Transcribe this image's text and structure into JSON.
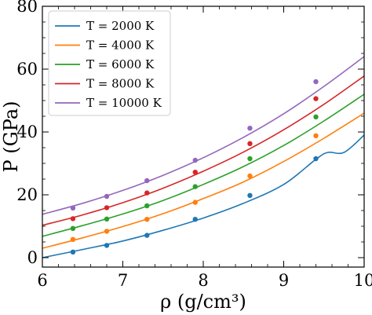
{
  "chart_data": {
    "type": "line",
    "xlabel": "ρ (g/cm³)",
    "ylabel": "P (GPa)",
    "xlim": [
      6,
      10
    ],
    "ylim": [
      -3,
      80
    ],
    "x_ticks": [
      6,
      7,
      8,
      9,
      10
    ],
    "y_ticks": [
      0,
      20,
      40,
      60,
      80
    ],
    "x_tick_labels": [
      "6",
      "7",
      "8",
      "9",
      "10"
    ],
    "y_tick_labels": [
      "0",
      "20",
      "40",
      "60",
      "80"
    ],
    "grid": false,
    "legend_position": "top-left",
    "series": [
      {
        "name": "T = 2000 K",
        "color": "#1f77b4",
        "line_x": [
          6.0,
          6.5,
          7.0,
          7.5,
          8.0,
          8.5,
          9.0,
          9.4,
          9.55,
          9.75,
          10.0
        ],
        "line_y": [
          0.0,
          2.6,
          5.3,
          8.7,
          12.6,
          17.3,
          23.3,
          31.3,
          33.5,
          33.5,
          39.0
        ],
        "points_x": [
          6.38,
          6.8,
          7.3,
          7.9,
          8.58,
          9.4
        ],
        "points_y": [
          1.8,
          3.9,
          7.1,
          12.2,
          19.8,
          31.5
        ]
      },
      {
        "name": "T = 4000 K",
        "color": "#ff7f0e",
        "line_x": [
          6.0,
          6.5,
          7.0,
          7.5,
          8.0,
          8.5,
          9.0,
          9.5,
          10.0
        ],
        "line_y": [
          3.0,
          6.3,
          9.9,
          14.0,
          18.8,
          24.1,
          30.6,
          38.0,
          46.0
        ],
        "points_x": [
          6.38,
          6.8,
          7.3,
          7.9,
          8.58,
          9.4
        ],
        "points_y": [
          5.8,
          8.4,
          12.2,
          17.6,
          26.0,
          38.8
        ]
      },
      {
        "name": "T = 6000 K",
        "color": "#2ca02c",
        "line_x": [
          6.0,
          6.5,
          7.0,
          7.5,
          8.0,
          8.5,
          9.0,
          9.5,
          10.0
        ],
        "line_y": [
          6.8,
          10.2,
          13.9,
          18.2,
          23.3,
          29.0,
          35.7,
          43.5,
          52.0
        ],
        "points_x": [
          6.38,
          6.8,
          7.3,
          7.9,
          8.58,
          9.4
        ],
        "points_y": [
          9.3,
          12.3,
          16.5,
          22.6,
          31.5,
          44.8
        ]
      },
      {
        "name": "T = 8000 K",
        "color": "#d62728",
        "line_x": [
          6.0,
          6.5,
          7.0,
          7.5,
          8.0,
          8.5,
          9.0,
          9.5,
          10.0
        ],
        "line_y": [
          10.3,
          13.6,
          17.5,
          22.1,
          27.5,
          33.6,
          40.7,
          48.8,
          57.8
        ],
        "points_x": [
          6.38,
          6.8,
          7.3,
          7.9,
          8.58,
          9.4
        ],
        "points_y": [
          12.4,
          15.9,
          20.6,
          27.2,
          36.3,
          50.6
        ]
      },
      {
        "name": "T = 10000 K",
        "color": "#9467bd",
        "line_x": [
          6.0,
          6.5,
          7.0,
          7.5,
          8.0,
          8.5,
          9.0,
          9.5,
          10.0
        ],
        "line_y": [
          13.8,
          17.3,
          21.4,
          26.2,
          31.8,
          38.3,
          45.8,
          54.5,
          64.0
        ],
        "points_x": [
          6.38,
          6.8,
          7.3,
          7.9,
          8.58,
          9.4
        ],
        "points_y": [
          15.8,
          19.5,
          24.5,
          31.0,
          41.2,
          56.0
        ]
      }
    ]
  }
}
